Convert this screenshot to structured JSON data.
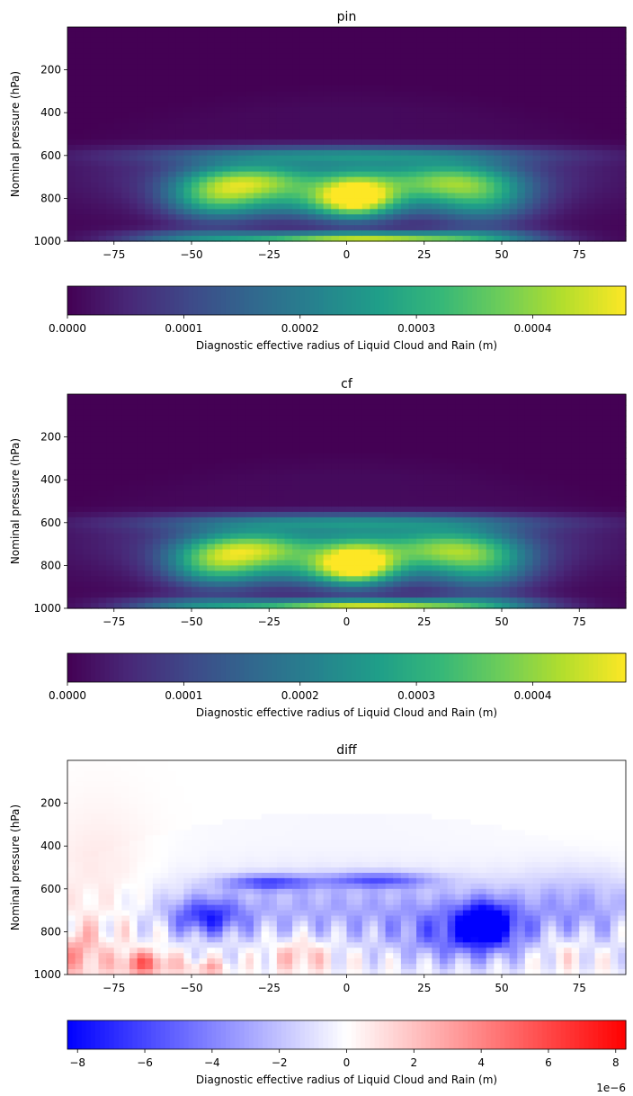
{
  "chart_data": [
    {
      "type": "heatmap",
      "title": "pin",
      "xlabel": "",
      "ylabel": "Nominal pressure (hPa)",
      "xlim": [
        -90,
        90
      ],
      "ylim": [
        1000,
        0
      ],
      "xticks": [
        -75,
        -50,
        -25,
        0,
        25,
        50,
        75
      ],
      "xtick_labels": [
        "−75",
        "−50",
        "−25",
        "0",
        "25",
        "50",
        "75"
      ],
      "yticks": [
        200,
        400,
        600,
        800,
        1000
      ],
      "ytick_labels": [
        "200",
        "400",
        "600",
        "800",
        "1000"
      ],
      "colormap": "viridis",
      "field": "pin",
      "colorbar": {
        "label": "Diagnostic effective radius of Liquid Cloud and Rain (m)",
        "range": [
          0,
          0.00048
        ],
        "ticks": [
          0,
          0.0001,
          0.0002,
          0.0003,
          0.0004
        ],
        "tick_labels": [
          "0.0000",
          "0.0001",
          "0.0002",
          "0.0003",
          "0.0004"
        ],
        "offset_text": ""
      }
    },
    {
      "type": "heatmap",
      "title": "cf",
      "xlabel": "",
      "ylabel": "Nominal pressure (hPa)",
      "xlim": [
        -90,
        90
      ],
      "ylim": [
        1000,
        0
      ],
      "xticks": [
        -75,
        -50,
        -25,
        0,
        25,
        50,
        75
      ],
      "xtick_labels": [
        "−75",
        "−50",
        "−25",
        "0",
        "25",
        "50",
        "75"
      ],
      "yticks": [
        200,
        400,
        600,
        800,
        1000
      ],
      "ytick_labels": [
        "200",
        "400",
        "600",
        "800",
        "1000"
      ],
      "colormap": "viridis",
      "field": "cf",
      "colorbar": {
        "label": "Diagnostic effective radius of Liquid Cloud and Rain (m)",
        "range": [
          0,
          0.00048
        ],
        "ticks": [
          0,
          0.0001,
          0.0002,
          0.0003,
          0.0004
        ],
        "tick_labels": [
          "0.0000",
          "0.0001",
          "0.0002",
          "0.0003",
          "0.0004"
        ],
        "offset_text": ""
      }
    },
    {
      "type": "heatmap",
      "title": "diff",
      "xlabel": "",
      "ylabel": "Nominal pressure (hPa)",
      "xlim": [
        -90,
        90
      ],
      "ylim": [
        1000,
        0
      ],
      "xticks": [
        -75,
        -50,
        -25,
        0,
        25,
        50,
        75
      ],
      "xtick_labels": [
        "−75",
        "−50",
        "−25",
        "0",
        "25",
        "50",
        "75"
      ],
      "yticks": [
        200,
        400,
        600,
        800,
        1000
      ],
      "ytick_labels": [
        "200",
        "400",
        "600",
        "800",
        "1000"
      ],
      "colormap": "bwr",
      "field": "diff",
      "colorbar": {
        "label": "Diagnostic effective radius of Liquid Cloud and Rain (m)",
        "range": [
          -8.3,
          8.3
        ],
        "ticks": [
          -8,
          -6,
          -4,
          -2,
          0,
          2,
          4,
          6,
          8
        ],
        "tick_labels": [
          "−8",
          "−6",
          "−4",
          "−2",
          "0",
          "2",
          "4",
          "6",
          "8"
        ],
        "offset_text": "1e−6"
      }
    }
  ]
}
